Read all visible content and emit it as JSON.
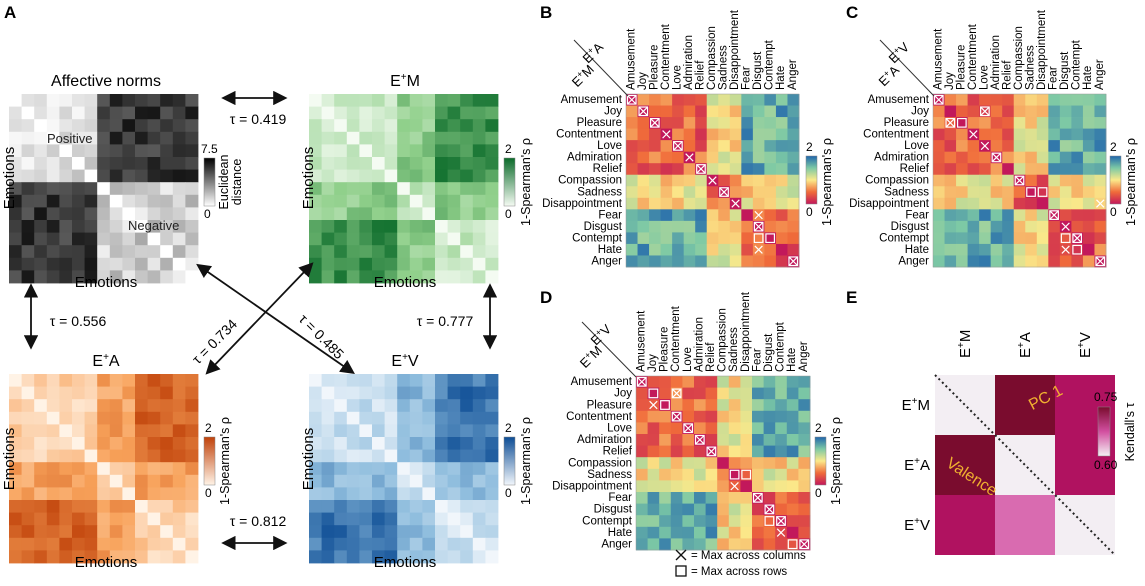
{
  "panel_letters": [
    "A",
    "B",
    "C",
    "D",
    "E"
  ],
  "panel_a": {
    "title_norms": "Affective norms",
    "title_em": "E",
    "title_em_sup": "+",
    "title_em_suffix": "M",
    "title_ea": "E",
    "title_ea_sup": "+",
    "title_ea_suffix": "A",
    "title_ev": "E",
    "title_ev_sup": "+",
    "title_ev_suffix": "V",
    "axis_label": "Emotions",
    "positive_label": "Positive",
    "negative_label": "Negative",
    "norms_cbar": {
      "label": "Euclidean distance",
      "label_line1": "Euclidean",
      "label_line2": "distance",
      "max": "7.5",
      "min": "0"
    },
    "spearman_cbar": {
      "label": "1-Spearman's ρ",
      "max": "2",
      "min": "0"
    },
    "taus": {
      "norms_em": "τ = 0.419",
      "norms_ea": "τ = 0.556",
      "em_ev": "τ = 0.777",
      "ea_ev": "τ = 0.812",
      "diag_ea": "τ = 0.734",
      "diag_ev": "τ = 0.485"
    }
  },
  "emotions": [
    "Amusement",
    "Joy",
    "Pleasure",
    "Contentment",
    "Love",
    "Admiration",
    "Relief",
    "Compassion",
    "Sadness",
    "Disappointment",
    "Fear",
    "Disgust",
    "Contempt",
    "Hate",
    "Anger"
  ],
  "panel_b": {
    "corner_top": "E",
    "corner_top_sup": "+",
    "corner_top_suffix": "A",
    "corner_bottom": "E",
    "corner_bottom_sup": "+",
    "corner_bottom_suffix": "M"
  },
  "panel_c": {
    "corner_top": "E",
    "corner_top_sup": "+",
    "corner_top_suffix": "V",
    "corner_bottom": "E",
    "corner_bottom_sup": "+",
    "corner_bottom_suffix": "A"
  },
  "panel_d": {
    "corner_top": "E",
    "corner_top_sup": "+",
    "corner_top_suffix": "V",
    "corner_bottom": "E",
    "corner_bottom_sup": "+",
    "corner_bottom_suffix": "M"
  },
  "rdm_cbar": {
    "label": "1-Spearman's ρ",
    "max": "2",
    "min": "0"
  },
  "legend": {
    "cross_text": "= Max across columns",
    "square_text": "= Max across rows"
  },
  "panel_e": {
    "cols": [
      "E+M",
      "E+A",
      "E+V"
    ],
    "rows": [
      "E+M",
      "E+A",
      "E+V"
    ],
    "cbar": {
      "label": "Kendall's τ",
      "max": "0.75",
      "min": "0.60"
    },
    "pc_label": "PC 1",
    "valence_label": "Valence",
    "colors": {
      "dark": "#7a0c2e",
      "mid": "#b01260",
      "light": "#d96bb0",
      "diag": "#f3eef3"
    }
  },
  "colors": {
    "norms": "#000000",
    "green": "#1a8a3c",
    "orange": "#d94e0a",
    "blue": "#1f6db0",
    "spectral_low": "#c2185b",
    "spectral_high": "#2166ac"
  }
}
